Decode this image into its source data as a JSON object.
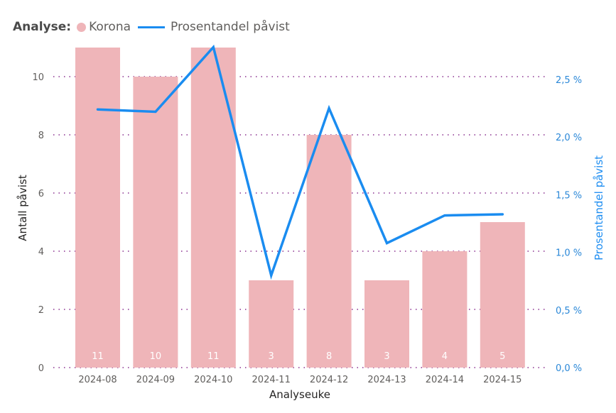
{
  "legend": {
    "title": "Analyse:",
    "items": [
      {
        "label": "Korona",
        "type": "dot",
        "color": "#efb5b9"
      },
      {
        "label": "Prosentandel påvist",
        "type": "line",
        "color": "#1a8cf0"
      }
    ]
  },
  "axes": {
    "x_title": "Analyseuke",
    "y_left_title": "Antall påvist",
    "y_right_title": "Prosentandel påvist",
    "y_left_ticks": [
      "0",
      "2",
      "4",
      "6",
      "8",
      "10"
    ],
    "y_right_ticks": [
      "0,0 %",
      "0,5 %",
      "1,0 %",
      "1,5 %",
      "2,0 %",
      "2,5 %"
    ]
  },
  "colors": {
    "bar": "#efb5b9",
    "line": "#1a8cf0",
    "grid": "#8a2f8f",
    "right_axis": "#2b88d8"
  },
  "chart_data": {
    "type": "bar",
    "title": "",
    "xlabel": "Analyseuke",
    "ylabel": "Antall påvist",
    "ylabel_right": "Prosentandel påvist",
    "ylim": [
      0,
      11
    ],
    "ylim_right": [
      0,
      2.78
    ],
    "legend_position": "top-left",
    "grid": "horizontal dotted",
    "categories": [
      "2024-08",
      "2024-09",
      "2024-10",
      "2024-11",
      "2024-12",
      "2024-13",
      "2024-14",
      "2024-15"
    ],
    "series": [
      {
        "name": "Korona",
        "type": "bar",
        "axis": "left",
        "values": [
          11,
          10,
          11,
          3,
          8,
          3,
          4,
          5
        ],
        "labels": [
          "11",
          "10",
          "11",
          "3",
          "8",
          "3",
          "4",
          "5"
        ]
      },
      {
        "name": "Prosentandel påvist",
        "type": "line",
        "axis": "right",
        "unit": "%",
        "values": [
          2.24,
          2.22,
          2.78,
          0.8,
          2.25,
          1.08,
          1.32,
          1.33
        ]
      }
    ]
  }
}
